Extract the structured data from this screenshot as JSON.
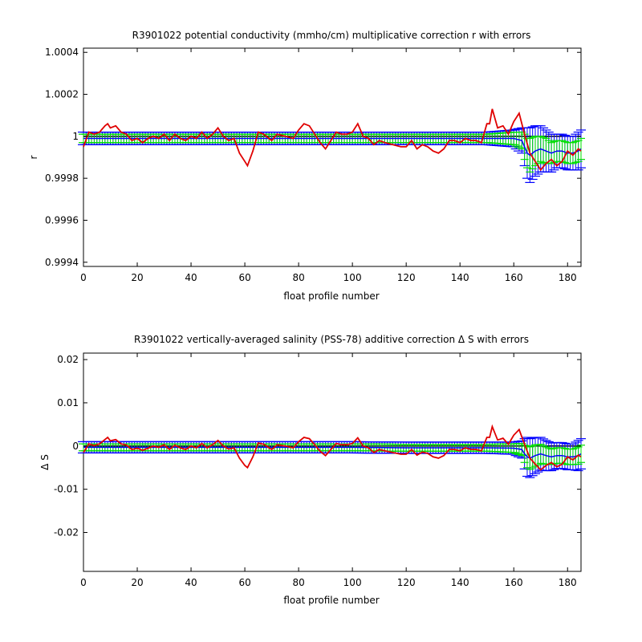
{
  "chart_data": [
    {
      "type": "line",
      "title": "R3901022 potential conductivity (mmho/cm) multiplicative correction r with errors",
      "xlabel": "float profile number",
      "ylabel": "r",
      "xlim": [
        0,
        185
      ],
      "ylim": [
        0.99938,
        1.00042
      ],
      "xticks": [
        0,
        20,
        40,
        60,
        80,
        100,
        120,
        140,
        160,
        180
      ],
      "xtick_labels": [
        "0",
        "20",
        "40",
        "60",
        "80",
        "100",
        "120",
        "140",
        "160",
        "180"
      ],
      "yticks": [
        0.9994,
        0.9996,
        0.9998,
        1,
        1.0002,
        1.0004
      ],
      "ytick_labels": [
        "0.9994",
        "0.9996",
        "0.9998",
        "1",
        "1.0002",
        "1.0004"
      ],
      "reference_line": 1,
      "grid": false,
      "colors": {
        "fit": "#0000ff",
        "error_narrow": "#00e000",
        "raw": "#e00000",
        "reference": "#000000"
      },
      "series": [
        {
          "role": "raw correction (red line)",
          "x": [
            0,
            2,
            4,
            6,
            8,
            9,
            10,
            12,
            14,
            16,
            18,
            20,
            22,
            24,
            26,
            28,
            30,
            32,
            34,
            36,
            38,
            40,
            42,
            44,
            46,
            48,
            50,
            52,
            54,
            56,
            58,
            60,
            61,
            63,
            65,
            67,
            70,
            72,
            75,
            78,
            80,
            82,
            84,
            86,
            88,
            90,
            92,
            94,
            96,
            98,
            100,
            102,
            104,
            106,
            108,
            110,
            112,
            115,
            118,
            120,
            122,
            124,
            126,
            128,
            130,
            132,
            134,
            136,
            138,
            140,
            142,
            144,
            146,
            148,
            150,
            151,
            152,
            154,
            156,
            158,
            160,
            162,
            164,
            166,
            168,
            170,
            172,
            174,
            176,
            178,
            180,
            182,
            184,
            185
          ],
          "y": [
            0.99995,
            1.00002,
            1.00001,
            1.00002,
            1.00005,
            1.00006,
            1.00004,
            1.00005,
            1.00002,
            1.00001,
            0.99998,
            0.99999,
            0.99997,
            0.99999,
            1.0,
            0.99999,
            1.00001,
            0.99998,
            1.00001,
            0.99999,
            0.99998,
            1.0,
            0.99999,
            1.00002,
            0.99999,
            1.00001,
            1.00004,
            1.0,
            0.99998,
            0.99999,
            0.99992,
            0.99988,
            0.99986,
            0.99993,
            1.00002,
            1.00001,
            0.99998,
            1.00001,
            1.0,
            0.99999,
            1.00003,
            1.00006,
            1.00005,
            1.00001,
            0.99997,
            0.99994,
            0.99998,
            1.00002,
            1.00001,
            1.00001,
            1.00002,
            1.00006,
            1.0,
            0.99999,
            0.99996,
            0.99998,
            0.99997,
            0.99996,
            0.99995,
            0.99995,
            0.99998,
            0.99994,
            0.99996,
            0.99995,
            0.99993,
            0.99992,
            0.99994,
            0.99998,
            0.99998,
            0.99997,
            0.99999,
            0.99998,
            0.99998,
            0.99997,
            1.00006,
            1.00006,
            1.00013,
            1.00004,
            1.00005,
            1.00001,
            1.00007,
            1.00011,
            1.00001,
            0.99992,
            0.99988,
            0.99984,
            0.99987,
            0.99989,
            0.99986,
            0.99988,
            0.99993,
            0.99991,
            0.99994,
            0.99993
          ]
        },
        {
          "role": "mapped correction (blue, with error bars)",
          "x": [
            0,
            20,
            40,
            60,
            80,
            100,
            120,
            140,
            150,
            160,
            163,
            164,
            165,
            166,
            168,
            170,
            172,
            174,
            176,
            178,
            180,
            182,
            184,
            185
          ],
          "y": [
            0.99999,
            0.99999,
            0.99999,
            0.99999,
            0.99999,
            0.99999,
            0.99999,
            0.99999,
            0.99999,
            0.99999,
            0.99998,
            0.99995,
            0.99992,
            0.99991,
            0.99993,
            0.99994,
            0.99993,
            0.99992,
            0.99993,
            0.99993,
            0.99992,
            0.99992,
            0.99993,
            0.99994
          ],
          "err": [
            3e-05,
            3e-05,
            3e-05,
            3e-05,
            3e-05,
            3e-05,
            3e-05,
            3e-05,
            3e-05,
            4e-05,
            6e-05,
            9e-05,
            0.00012,
            0.00013,
            0.00012,
            0.00011,
            0.0001,
            9e-05,
            8e-05,
            8e-05,
            8e-05,
            8e-05,
            9e-05,
            9e-05
          ],
          "err_narrow": [
            2e-05,
            2e-05,
            2e-05,
            2e-05,
            2e-05,
            2e-05,
            2e-05,
            2e-05,
            2e-05,
            3e-05,
            4e-05,
            6e-05,
            7e-05,
            8e-05,
            7e-05,
            6e-05,
            6e-05,
            5e-05,
            5e-05,
            5e-05,
            5e-05,
            5e-05,
            5e-05,
            5e-05
          ]
        }
      ]
    },
    {
      "type": "line",
      "title": "R3901022 vertically-averaged salinity (PSS-78) additive correction Δ S with errors",
      "xlabel": "float profile number",
      "ylabel": "Δ S",
      "xlim": [
        0,
        185
      ],
      "ylim": [
        -0.029,
        0.0215
      ],
      "xticks": [
        0,
        20,
        40,
        60,
        80,
        100,
        120,
        140,
        160,
        180
      ],
      "xtick_labels": [
        "0",
        "20",
        "40",
        "60",
        "80",
        "100",
        "120",
        "140",
        "160",
        "180"
      ],
      "yticks": [
        -0.02,
        -0.01,
        0,
        0.01,
        0.02
      ],
      "ytick_labels": [
        "-0.02",
        "-0.01",
        "0",
        "0.01",
        "0.02"
      ],
      "reference_line": 0,
      "grid": false,
      "colors": {
        "fit": "#0000ff",
        "error_narrow": "#00e000",
        "raw": "#e00000",
        "reference": "#000000"
      },
      "series": [
        {
          "role": "raw correction (red line)",
          "x": [
            0,
            2,
            4,
            6,
            8,
            9,
            10,
            12,
            14,
            16,
            18,
            20,
            22,
            24,
            26,
            28,
            30,
            32,
            34,
            36,
            38,
            40,
            42,
            44,
            46,
            48,
            50,
            52,
            54,
            56,
            58,
            60,
            61,
            63,
            65,
            67,
            70,
            72,
            75,
            78,
            80,
            82,
            84,
            86,
            88,
            90,
            92,
            94,
            96,
            98,
            100,
            102,
            104,
            106,
            108,
            110,
            112,
            115,
            118,
            120,
            122,
            124,
            126,
            128,
            130,
            132,
            134,
            136,
            138,
            140,
            142,
            144,
            146,
            148,
            150,
            151,
            152,
            154,
            156,
            158,
            160,
            162,
            164,
            166,
            168,
            170,
            172,
            174,
            176,
            178,
            180,
            182,
            184,
            185
          ],
          "y": [
            -0.0015,
            0.0005,
            0.0001,
            0.0005,
            0.0015,
            0.002,
            0.0012,
            0.0015,
            0.0005,
            0.0002,
            -0.0008,
            -0.0005,
            -0.001,
            -0.0005,
            0.0,
            -0.0003,
            0.0003,
            -0.0008,
            0.0002,
            -0.0004,
            -0.0008,
            0.0,
            -0.0004,
            0.0006,
            -0.0004,
            0.0003,
            0.0013,
            0.0,
            -0.0007,
            -0.0004,
            -0.0028,
            -0.0045,
            -0.005,
            -0.0025,
            0.0007,
            0.0004,
            -0.0008,
            0.0003,
            0.0,
            -0.0004,
            0.001,
            0.002,
            0.0017,
            0.0003,
            -0.0012,
            -0.0022,
            -0.0008,
            0.0006,
            0.0003,
            0.0003,
            0.0006,
            0.0019,
            0.0,
            -0.0004,
            -0.0015,
            -0.0008,
            -0.0011,
            -0.0015,
            -0.0019,
            -0.0019,
            -0.0008,
            -0.0021,
            -0.0014,
            -0.0017,
            -0.0025,
            -0.0028,
            -0.0022,
            -0.0008,
            -0.0008,
            -0.0011,
            -0.0004,
            -0.0008,
            -0.0008,
            -0.0011,
            0.002,
            0.002,
            0.0045,
            0.0014,
            0.0018,
            0.0004,
            0.0025,
            0.0038,
            0.0004,
            -0.0028,
            -0.0042,
            -0.0055,
            -0.0045,
            -0.0038,
            -0.0048,
            -0.0042,
            -0.0025,
            -0.0032,
            -0.0021,
            -0.0025
          ]
        },
        {
          "role": "mapped correction (blue, with error bars)",
          "x": [
            0,
            20,
            40,
            60,
            80,
            100,
            120,
            140,
            150,
            160,
            163,
            164,
            165,
            166,
            168,
            170,
            172,
            174,
            176,
            178,
            180,
            182,
            184,
            185
          ],
          "y": [
            -0.0003,
            -0.0003,
            -0.0003,
            -0.0003,
            -0.0003,
            -0.0003,
            -0.0004,
            -0.0004,
            -0.0004,
            -0.0005,
            -0.0008,
            -0.0018,
            -0.0025,
            -0.0028,
            -0.0022,
            -0.0018,
            -0.0022,
            -0.0025,
            -0.0022,
            -0.0022,
            -0.0025,
            -0.0025,
            -0.0022,
            -0.0018
          ],
          "err": [
            0.0013,
            0.0013,
            0.0013,
            0.0013,
            0.0013,
            0.0013,
            0.0013,
            0.0013,
            0.0013,
            0.0014,
            0.002,
            0.0035,
            0.0045,
            0.0045,
            0.0042,
            0.0038,
            0.0035,
            0.0032,
            0.003,
            0.003,
            0.003,
            0.003,
            0.0035,
            0.0035
          ],
          "err_narrow": [
            0.0008,
            0.0008,
            0.0008,
            0.0008,
            0.0008,
            0.0008,
            0.0008,
            0.0008,
            0.0008,
            0.001,
            0.0014,
            0.002,
            0.0025,
            0.0026,
            0.0025,
            0.0022,
            0.002,
            0.0018,
            0.0018,
            0.0018,
            0.0018,
            0.0018,
            0.002,
            0.002
          ]
        }
      ]
    }
  ]
}
